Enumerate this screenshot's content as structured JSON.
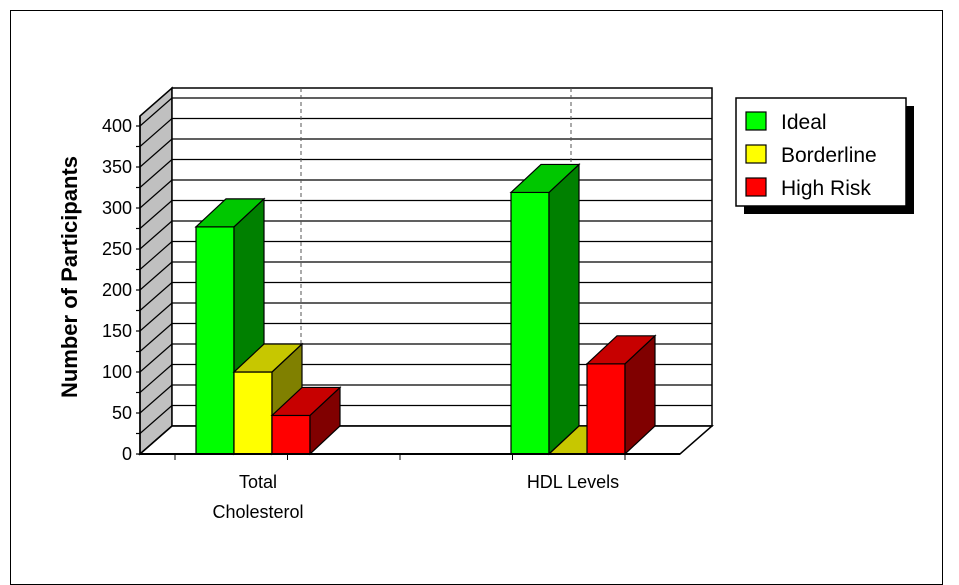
{
  "chart_data": {
    "type": "bar",
    "title": "",
    "xlabel": "",
    "ylabel": "Number of Participants",
    "categories": [
      "Total\nCholesterol",
      "HDL Levels"
    ],
    "series": [
      {
        "name": "Ideal",
        "values": [
          277,
          319
        ],
        "color": "#00ff00"
      },
      {
        "name": "Borderline",
        "values": [
          100,
          0
        ],
        "color": "#ffff00"
      },
      {
        "name": "High Risk",
        "values": [
          47,
          110
        ],
        "color": "#ff0000"
      }
    ],
    "ylim": [
      0,
      400
    ],
    "yticks": [
      0,
      50,
      100,
      150,
      200,
      250,
      300,
      350,
      400
    ],
    "grid": true,
    "legend": "top-right",
    "style": "3d"
  }
}
